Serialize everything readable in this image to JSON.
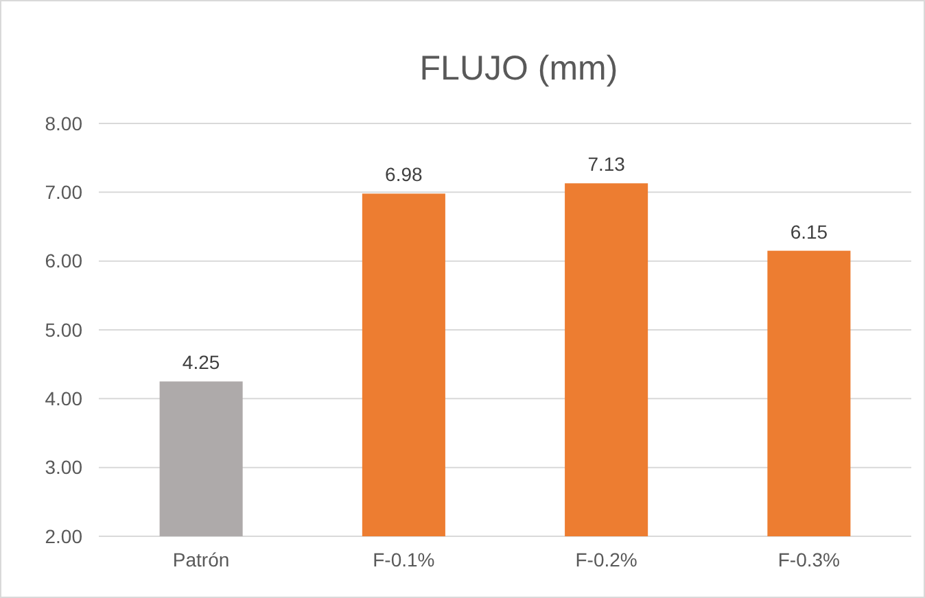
{
  "chart_data": {
    "type": "bar",
    "title": "FLUJO (mm)",
    "categories": [
      "Patrón",
      "F-0.1%",
      "F-0.2%",
      "F-0.3%"
    ],
    "values": [
      4.25,
      6.98,
      7.13,
      6.15
    ],
    "colors": [
      "#aeaaaa",
      "#ed7d31",
      "#ed7d31",
      "#ed7d31"
    ],
    "ylim": [
      2,
      8
    ],
    "yticks": [
      {
        "value": 2,
        "label": "2.00"
      },
      {
        "value": 3,
        "label": "3.00"
      },
      {
        "value": 4,
        "label": "4.00"
      },
      {
        "value": 5,
        "label": "5.00"
      },
      {
        "value": 6,
        "label": "6.00"
      },
      {
        "value": 7,
        "label": "7.00"
      },
      {
        "value": 8,
        "label": "8.00"
      }
    ],
    "grid": "y",
    "data_labels": true
  }
}
